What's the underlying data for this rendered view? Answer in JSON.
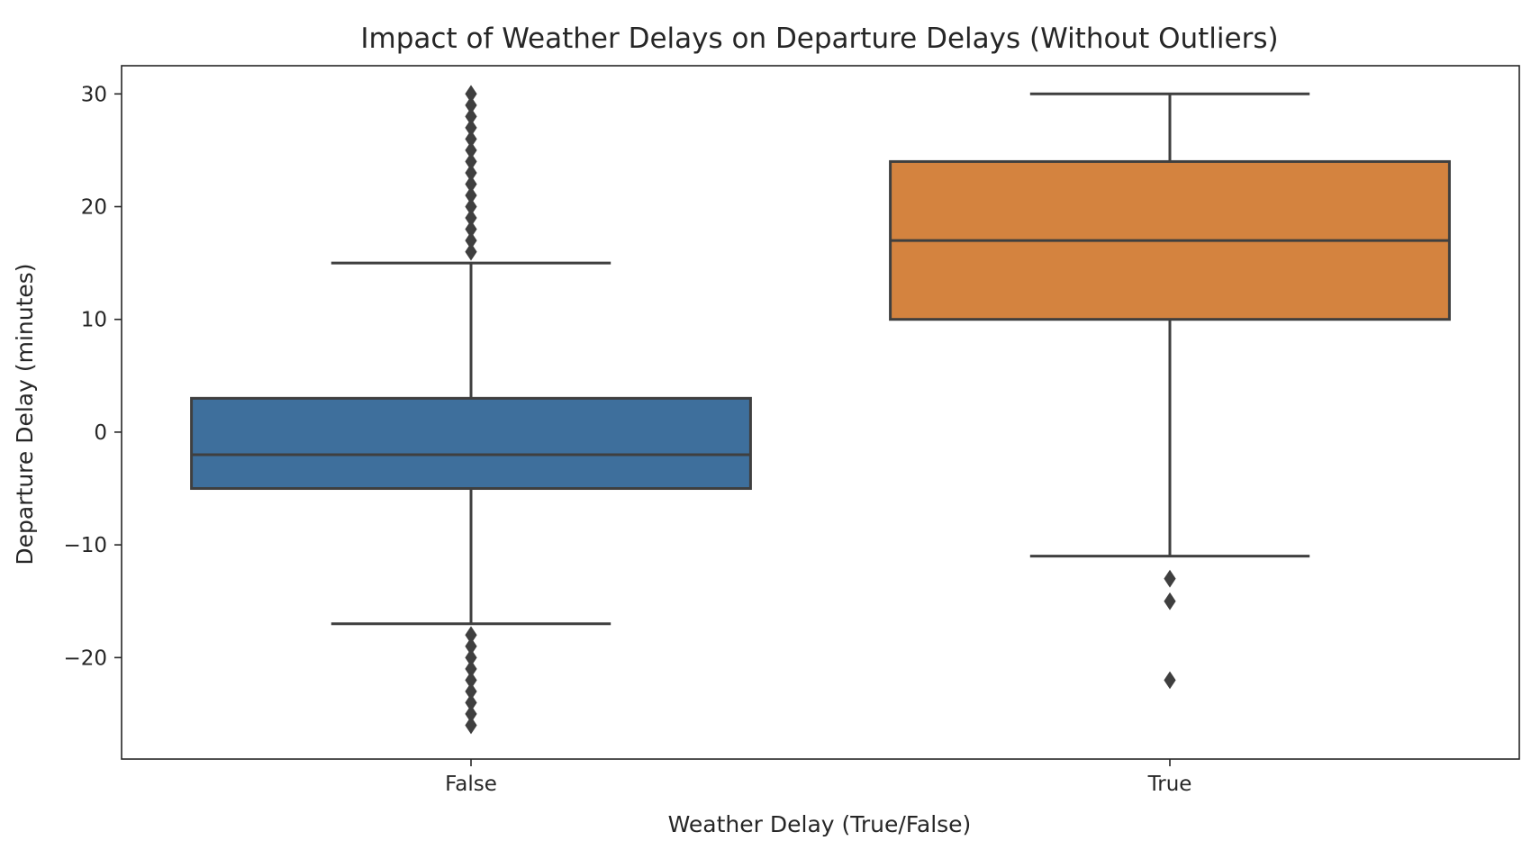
{
  "chart_data": {
    "type": "box",
    "title": "Impact of Weather Delays on Departure Delays (Without Outliers)",
    "xlabel": "Weather Delay (True/False)",
    "ylabel": "Departure Delay (minutes)",
    "categories": [
      "False",
      "True"
    ],
    "ylim": [
      -29,
      32.5
    ],
    "yticks": [
      30,
      20,
      10,
      0,
      -10,
      -20
    ],
    "ytick_labels": [
      "30",
      "20",
      "10",
      "0",
      "−10",
      "−20"
    ],
    "grid": false,
    "boxes": [
      {
        "category": "False",
        "color": "#3e6f9c",
        "whisker_low": -17,
        "q1": -5,
        "median": -2,
        "q3": 3,
        "whisker_high": 15,
        "outliers": [
          16,
          17,
          18,
          19,
          20,
          21,
          22,
          23,
          24,
          25,
          26,
          27,
          28,
          29,
          30,
          -18,
          -19,
          -20,
          -21,
          -22,
          -23,
          -24,
          -25,
          -26
        ]
      },
      {
        "category": "True",
        "color": "#d4833f",
        "whisker_low": -11,
        "q1": 10,
        "median": 17,
        "q3": 24,
        "whisker_high": 30,
        "outliers": [
          -13,
          -15,
          -22
        ]
      }
    ]
  }
}
